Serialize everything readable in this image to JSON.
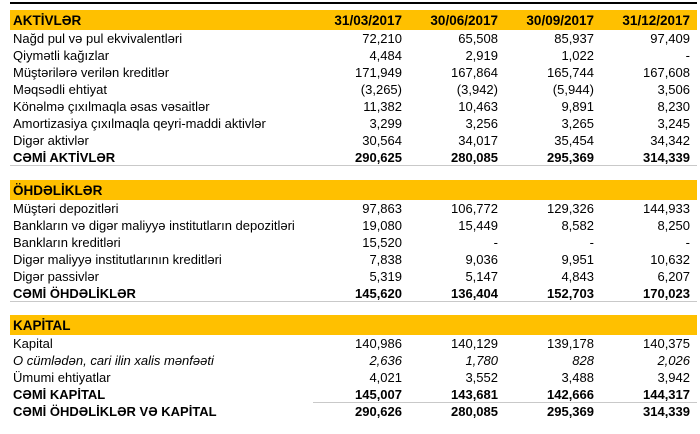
{
  "chart_data": {
    "type": "table",
    "date_columns": [
      "31/03/2017",
      "30/06/2017",
      "30/09/2017",
      "31/12/2017"
    ],
    "sections": [
      {
        "header": "AKTİVLƏR",
        "rows": [
          {
            "label": "Nağd pul və pul ekvivalentləri",
            "values": [
              "72,210",
              "65,508",
              "85,937",
              "97,409"
            ]
          },
          {
            "label": "Qiymətli kağızlar",
            "values": [
              "4,484",
              "2,919",
              "1,022",
              "-"
            ]
          },
          {
            "label": "Müştərilərə verilən kreditlər",
            "values": [
              "171,949",
              "167,864",
              "165,744",
              "167,608"
            ]
          },
          {
            "label": "Məqsədli ehtiyat",
            "values": [
              "(3,265)",
              "(3,942)",
              "(5,944)",
              "3,506"
            ]
          },
          {
            "label": "Könəlmə çıxılmaqla əsas vəsaitlər",
            "values": [
              "11,382",
              "10,463",
              "9,891",
              "8,230"
            ]
          },
          {
            "label": "Amortizasiya çıxılmaqla qeyri-maddi aktivlər",
            "values": [
              "3,299",
              "3,256",
              "3,265",
              "3,245"
            ]
          },
          {
            "label": "Digər aktivlər",
            "values": [
              "30,564",
              "34,017",
              "35,454",
              "34,342"
            ]
          }
        ],
        "total": {
          "label": "CƏMİ AKTİVLƏR",
          "values": [
            "290,625",
            "280,085",
            "295,369",
            "314,339"
          ]
        }
      },
      {
        "header": "ÖHDƏLİKLƏR",
        "rows": [
          {
            "label": "Müştəri depozitləri",
            "values": [
              "97,863",
              "106,772",
              "129,326",
              "144,933"
            ]
          },
          {
            "label": "Bankların və digər maliyyə institutların depozitləri",
            "values": [
              "19,080",
              "15,449",
              "8,582",
              "8,250"
            ]
          },
          {
            "label": "Bankların kreditləri",
            "values": [
              "15,520",
              "-",
              "-",
              "-"
            ]
          },
          {
            "label": "Digər maliyyə institutlarının kreditləri",
            "values": [
              "7,838",
              "9,036",
              "9,951",
              "10,632"
            ]
          },
          {
            "label": "Digər passivlər",
            "values": [
              "5,319",
              "5,147",
              "4,843",
              "6,207"
            ]
          }
        ],
        "total": {
          "label": "CƏMİ ÖHDƏLİKLƏR",
          "values": [
            "145,620",
            "136,404",
            "152,703",
            "170,023"
          ]
        }
      },
      {
        "header": "KAPİTAL",
        "rows": [
          {
            "label": "Kapital",
            "values": [
              "140,986",
              "140,129",
              "139,178",
              "140,375"
            ]
          },
          {
            "label": "O cümlədən, cari ilin xalis mənfəəti",
            "values": [
              "2,636",
              "1,780",
              "828",
              "2,026"
            ],
            "emphasis": "italic"
          },
          {
            "label": "Ümumi ehtiyatlar",
            "values": [
              "4,021",
              "3,552",
              "3,488",
              "3,942"
            ]
          }
        ],
        "total": {
          "label": "CƏMİ KAPİTAL",
          "values": [
            "145,007",
            "143,681",
            "142,666",
            "144,317"
          ]
        },
        "grand_total": {
          "label": "CƏMİ ÖHDƏLİKLƏR VƏ KAPİTAL",
          "values": [
            "290,626",
            "280,085",
            "295,369",
            "314,339"
          ]
        }
      }
    ]
  },
  "colors": {
    "section_header_bg": "#FFC000",
    "text": "#000000",
    "hairline": "#c9c9c9"
  }
}
